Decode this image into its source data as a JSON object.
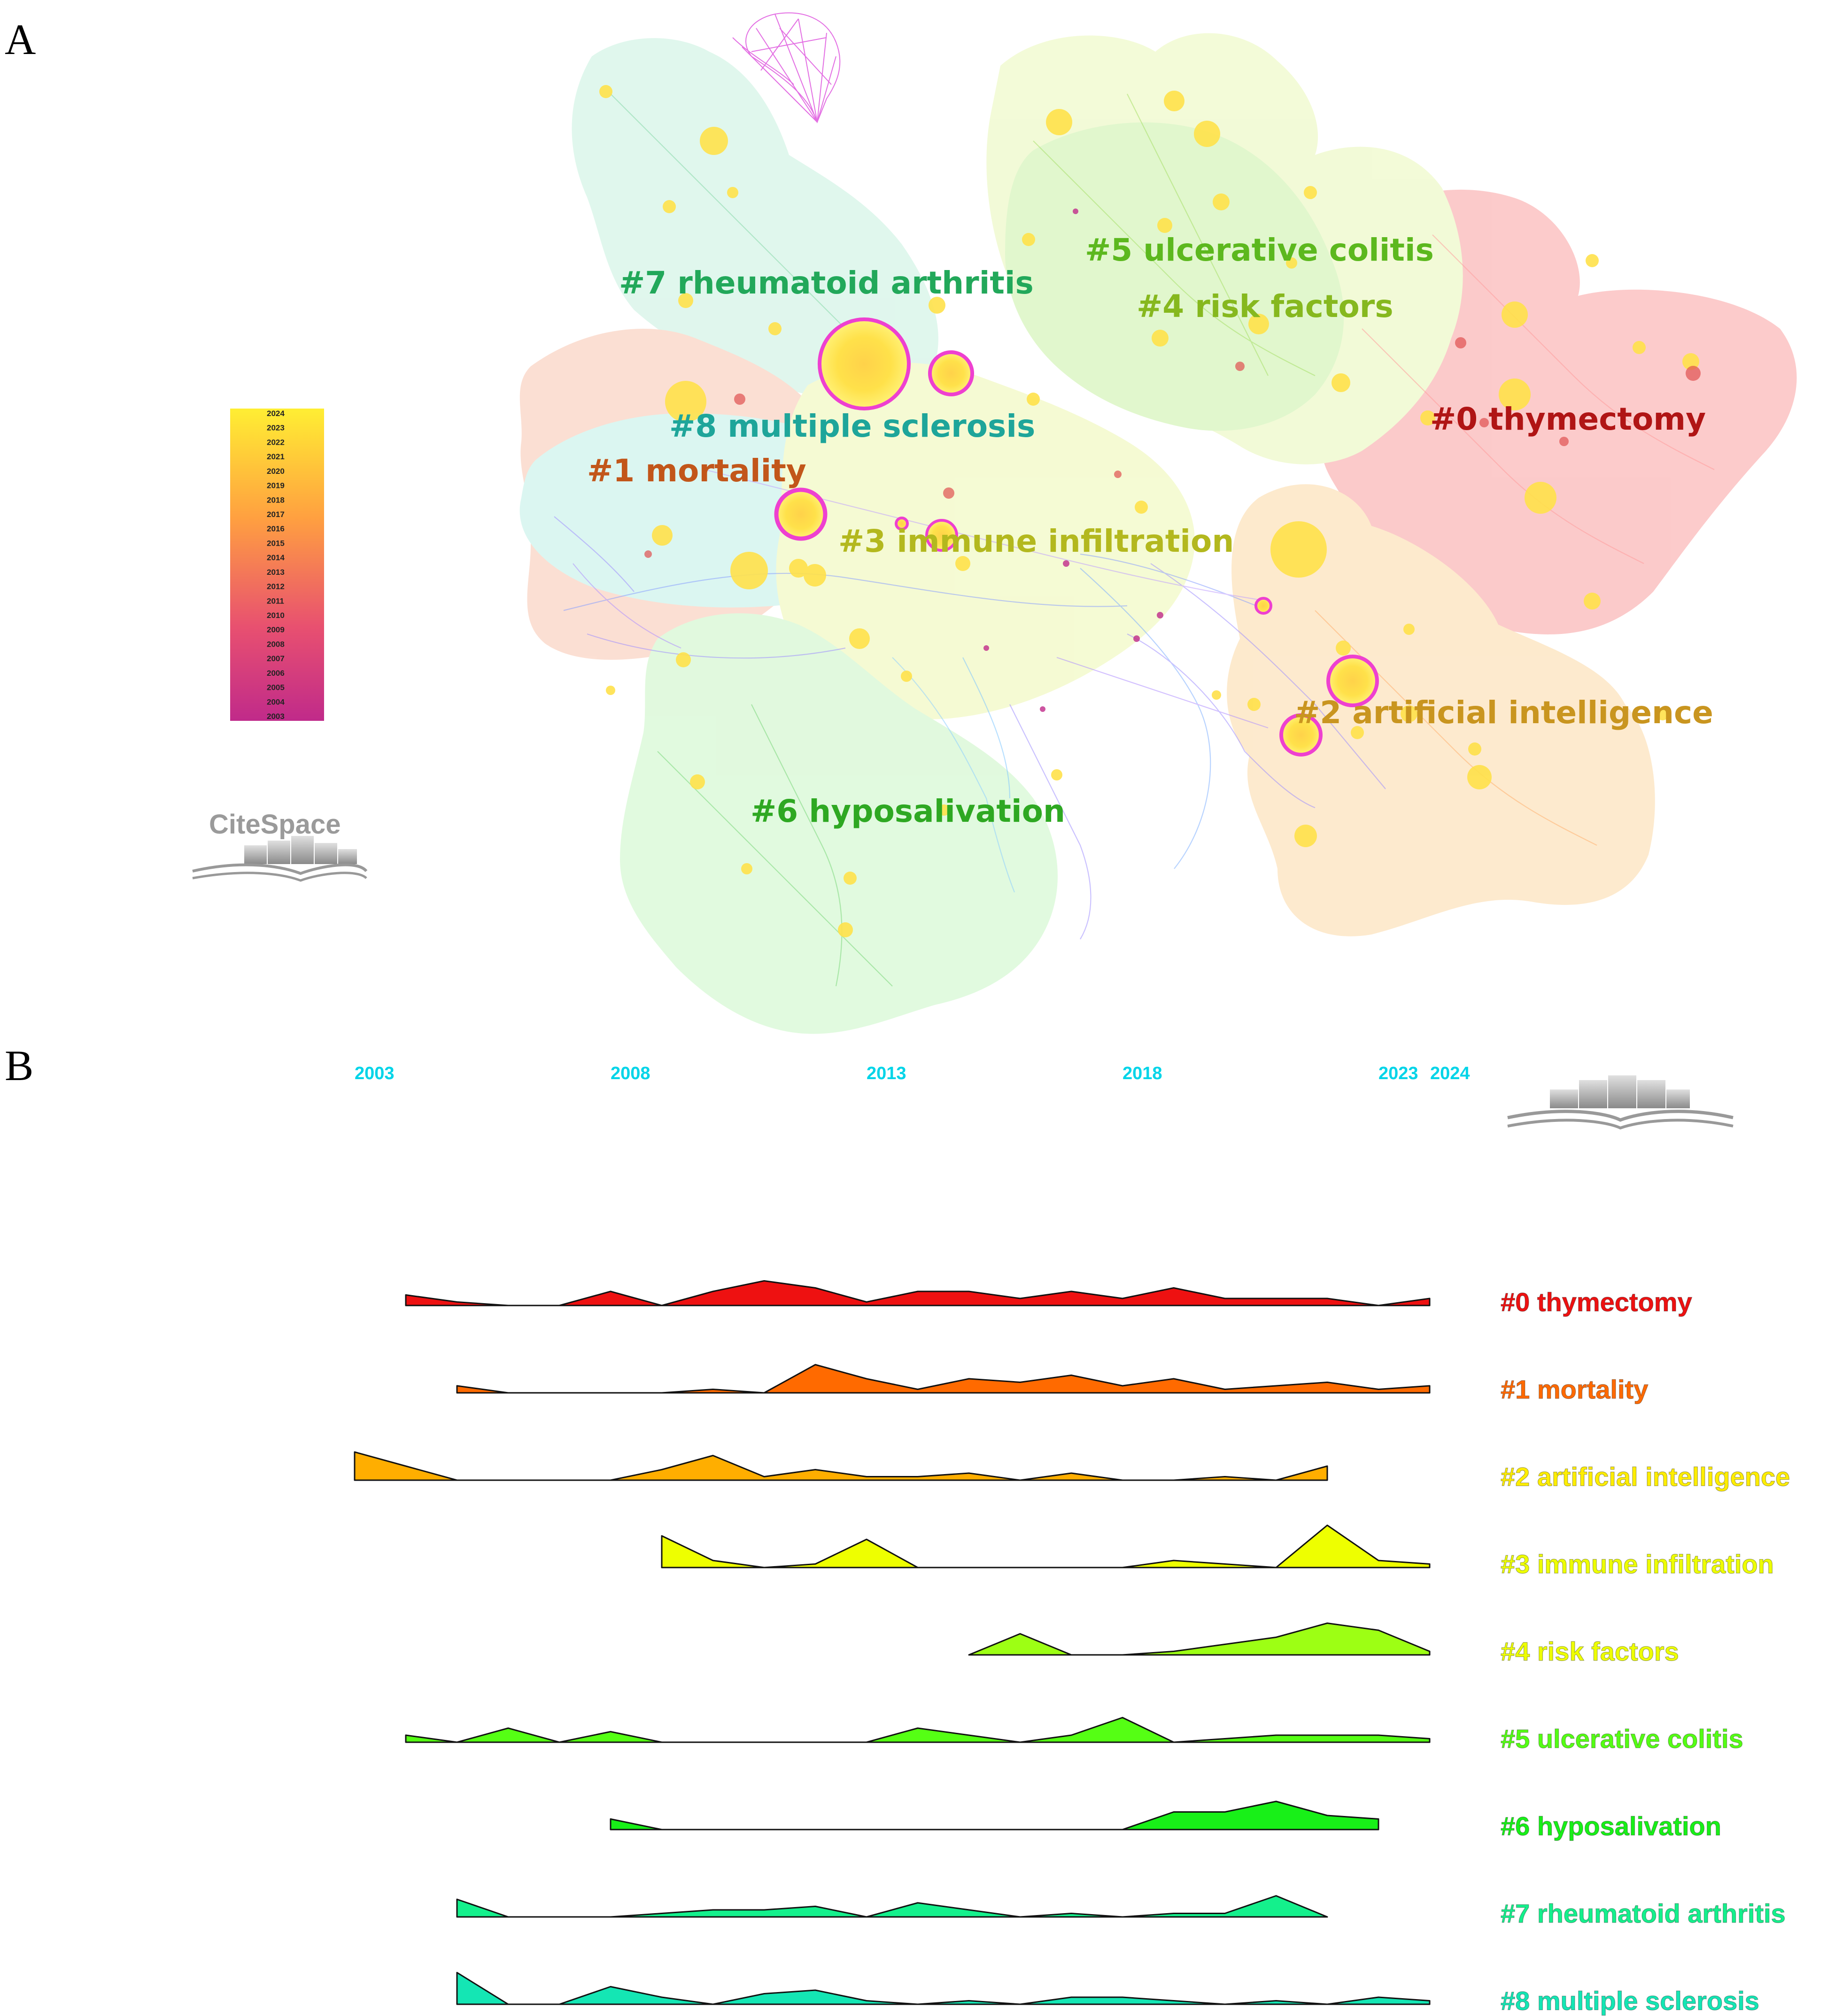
{
  "panels": {
    "a": "A",
    "b": "B"
  },
  "logo_text": "CiteSpace",
  "legend_years": [
    "2024",
    "2023",
    "2022",
    "2021",
    "2020",
    "2019",
    "2018",
    "2017",
    "2016",
    "2015",
    "2014",
    "2013",
    "2012",
    "2011",
    "2010",
    "2009",
    "2008",
    "2007",
    "2006",
    "2005",
    "2004",
    "2003"
  ],
  "clusters": [
    {
      "id": 0,
      "label": "#0 thymectomy",
      "color": "#b01515"
    },
    {
      "id": 1,
      "label": "#1 mortality",
      "color": "#c2561a"
    },
    {
      "id": 2,
      "label": "#2 artificial intelligence",
      "color": "#c9951f"
    },
    {
      "id": 3,
      "label": "#3 immune infiltration",
      "color": "#b3b81e"
    },
    {
      "id": 4,
      "label": "#4 risk factors",
      "color": "#86b81e"
    },
    {
      "id": 5,
      "label": "#5 ulcerative colitis",
      "color": "#5cb81e"
    },
    {
      "id": 6,
      "label": "#6 hyposalivation",
      "color": "#2ea822"
    },
    {
      "id": 7,
      "label": "#7 rheumatoid arthritis",
      "color": "#22a85a"
    },
    {
      "id": 8,
      "label": "#8 multiple sclerosis",
      "color": "#1ea59a"
    }
  ],
  "chart_data": {
    "type": "area",
    "title": "",
    "x_ticks": [
      "2003",
      "2008",
      "2013",
      "2018",
      "2023",
      "2024"
    ],
    "x_range": [
      2003,
      2024
    ],
    "series": [
      {
        "name": "#0 thymectomy",
        "color": "#ee1111",
        "label_color": "#ee1111",
        "start": 2004,
        "values": [
          3,
          1,
          0,
          0,
          4,
          0,
          4,
          7,
          5,
          1,
          4,
          4,
          2,
          4,
          2,
          5,
          2,
          2,
          2,
          0,
          2
        ]
      },
      {
        "name": "#1 mortality",
        "color": "#ff6a00",
        "label_color": "#ff6a00",
        "start": 2005,
        "values": [
          2,
          0,
          0,
          0,
          0,
          1,
          0,
          8,
          4,
          1,
          4,
          3,
          5,
          2,
          4,
          1,
          2,
          3,
          1,
          2
        ]
      },
      {
        "name": "#2 artificial intelligence",
        "color": "#ffae00",
        "label_color": "#ffee00",
        "start": 2003,
        "values": [
          8,
          4,
          0,
          0,
          0,
          0,
          3,
          7,
          1,
          3,
          1,
          1,
          2,
          0,
          2,
          0,
          0,
          1,
          0,
          4
        ]
      },
      {
        "name": "#3 immune infiltration",
        "color": "#eeff00",
        "label_color": "#eeff00",
        "start": 2009,
        "values": [
          9,
          2,
          0,
          1,
          8,
          0,
          0,
          0,
          0,
          0,
          2,
          1,
          0,
          12,
          2,
          1
        ]
      },
      {
        "name": "#4 risk factors",
        "color": "#9dff14",
        "label_color": "#eeff00",
        "start": 2015,
        "values": [
          0,
          6,
          0,
          0,
          1,
          3,
          5,
          9,
          7,
          1
        ]
      },
      {
        "name": "#5 ulcerative colitis",
        "color": "#55ff14",
        "label_color": "#55ff14",
        "start": 2004,
        "values": [
          2,
          0,
          4,
          0,
          3,
          0,
          0,
          0,
          0,
          0,
          4,
          2,
          0,
          2,
          7,
          0,
          1,
          2,
          2,
          2,
          1
        ]
      },
      {
        "name": "#6 hyposalivation",
        "color": "#18f018",
        "label_color": "#18f018",
        "start": 2008,
        "values": [
          3,
          0,
          0,
          0,
          0,
          0,
          0,
          0,
          0,
          0,
          0,
          5,
          5,
          8,
          4,
          3
        ]
      },
      {
        "name": "#7 rheumatoid arthritis",
        "color": "#14f08c",
        "label_color": "#14f08c",
        "start": 2005,
        "values": [
          5,
          0,
          0,
          0,
          1,
          2,
          2,
          3,
          0,
          4,
          2,
          0,
          1,
          0,
          1,
          1,
          6,
          0
        ]
      },
      {
        "name": "#8 multiple sclerosis",
        "color": "#14e6b4",
        "label_color": "#14e6b4",
        "start": 2005,
        "values": [
          9,
          0,
          0,
          5,
          2,
          0,
          3,
          4,
          1,
          0,
          1,
          0,
          2,
          2,
          1,
          0,
          1,
          0,
          2,
          1
        ]
      }
    ]
  }
}
